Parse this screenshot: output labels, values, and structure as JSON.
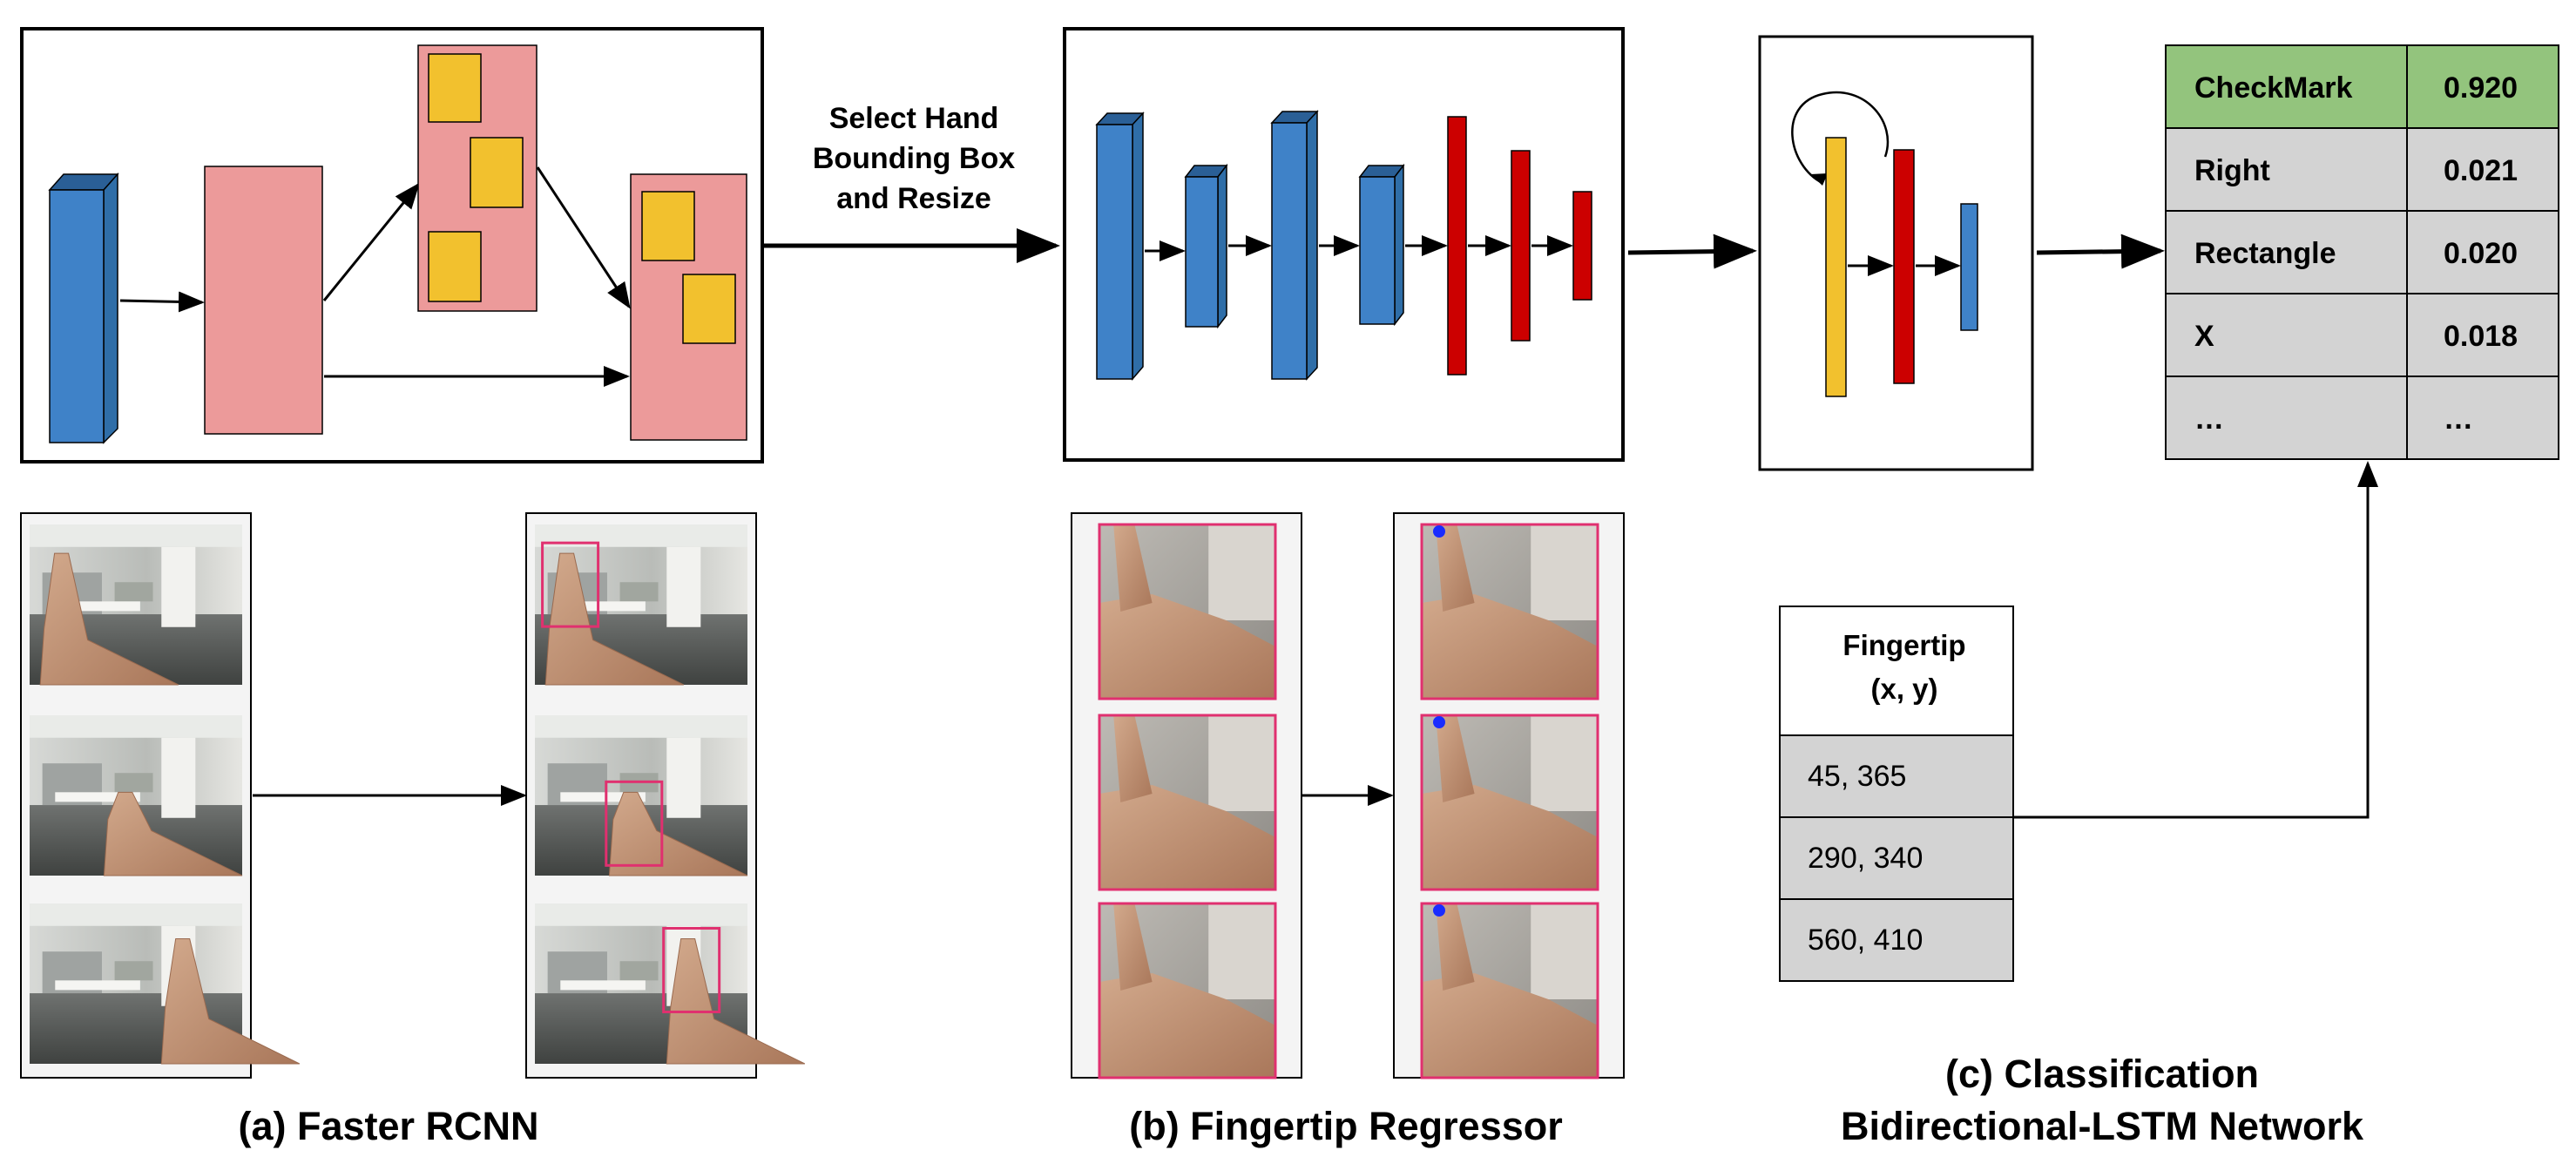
{
  "colors": {
    "blue": "#3f82c8",
    "blue_dark": "#2a5f96",
    "pink": "#ec9a9a",
    "yellow": "#f2c12e",
    "red": "#cc0000",
    "table_green": "#93c47d",
    "table_grey": "#d3d3d3",
    "bbox_magenta": "#e0306f",
    "fingertip_dot": "#1a2cff"
  },
  "arrow_label": [
    "Select Hand",
    "Bounding Box",
    "and Resize"
  ],
  "captions": {
    "faster_rcnn": "(a) Faster RCNN",
    "fingertip_regressor": "(b) Fingertip Regressor",
    "classification_line1": "(c) Classification",
    "classification_line2": "Bidirectional-LSTM Network"
  },
  "fingertip_table": {
    "header_line1": "Fingertip",
    "header_line2": "(x, y)",
    "rows": [
      "45, 365",
      "290, 340",
      "560, 410"
    ]
  },
  "output_table": {
    "rows": [
      {
        "label": "CheckMark",
        "value": "0.920"
      },
      {
        "label": "Right",
        "value": "0.021"
      },
      {
        "label": "Rectangle",
        "value": "0.020"
      },
      {
        "label": "X",
        "value": "0.018"
      },
      {
        "label": "…",
        "value": "…"
      }
    ]
  }
}
